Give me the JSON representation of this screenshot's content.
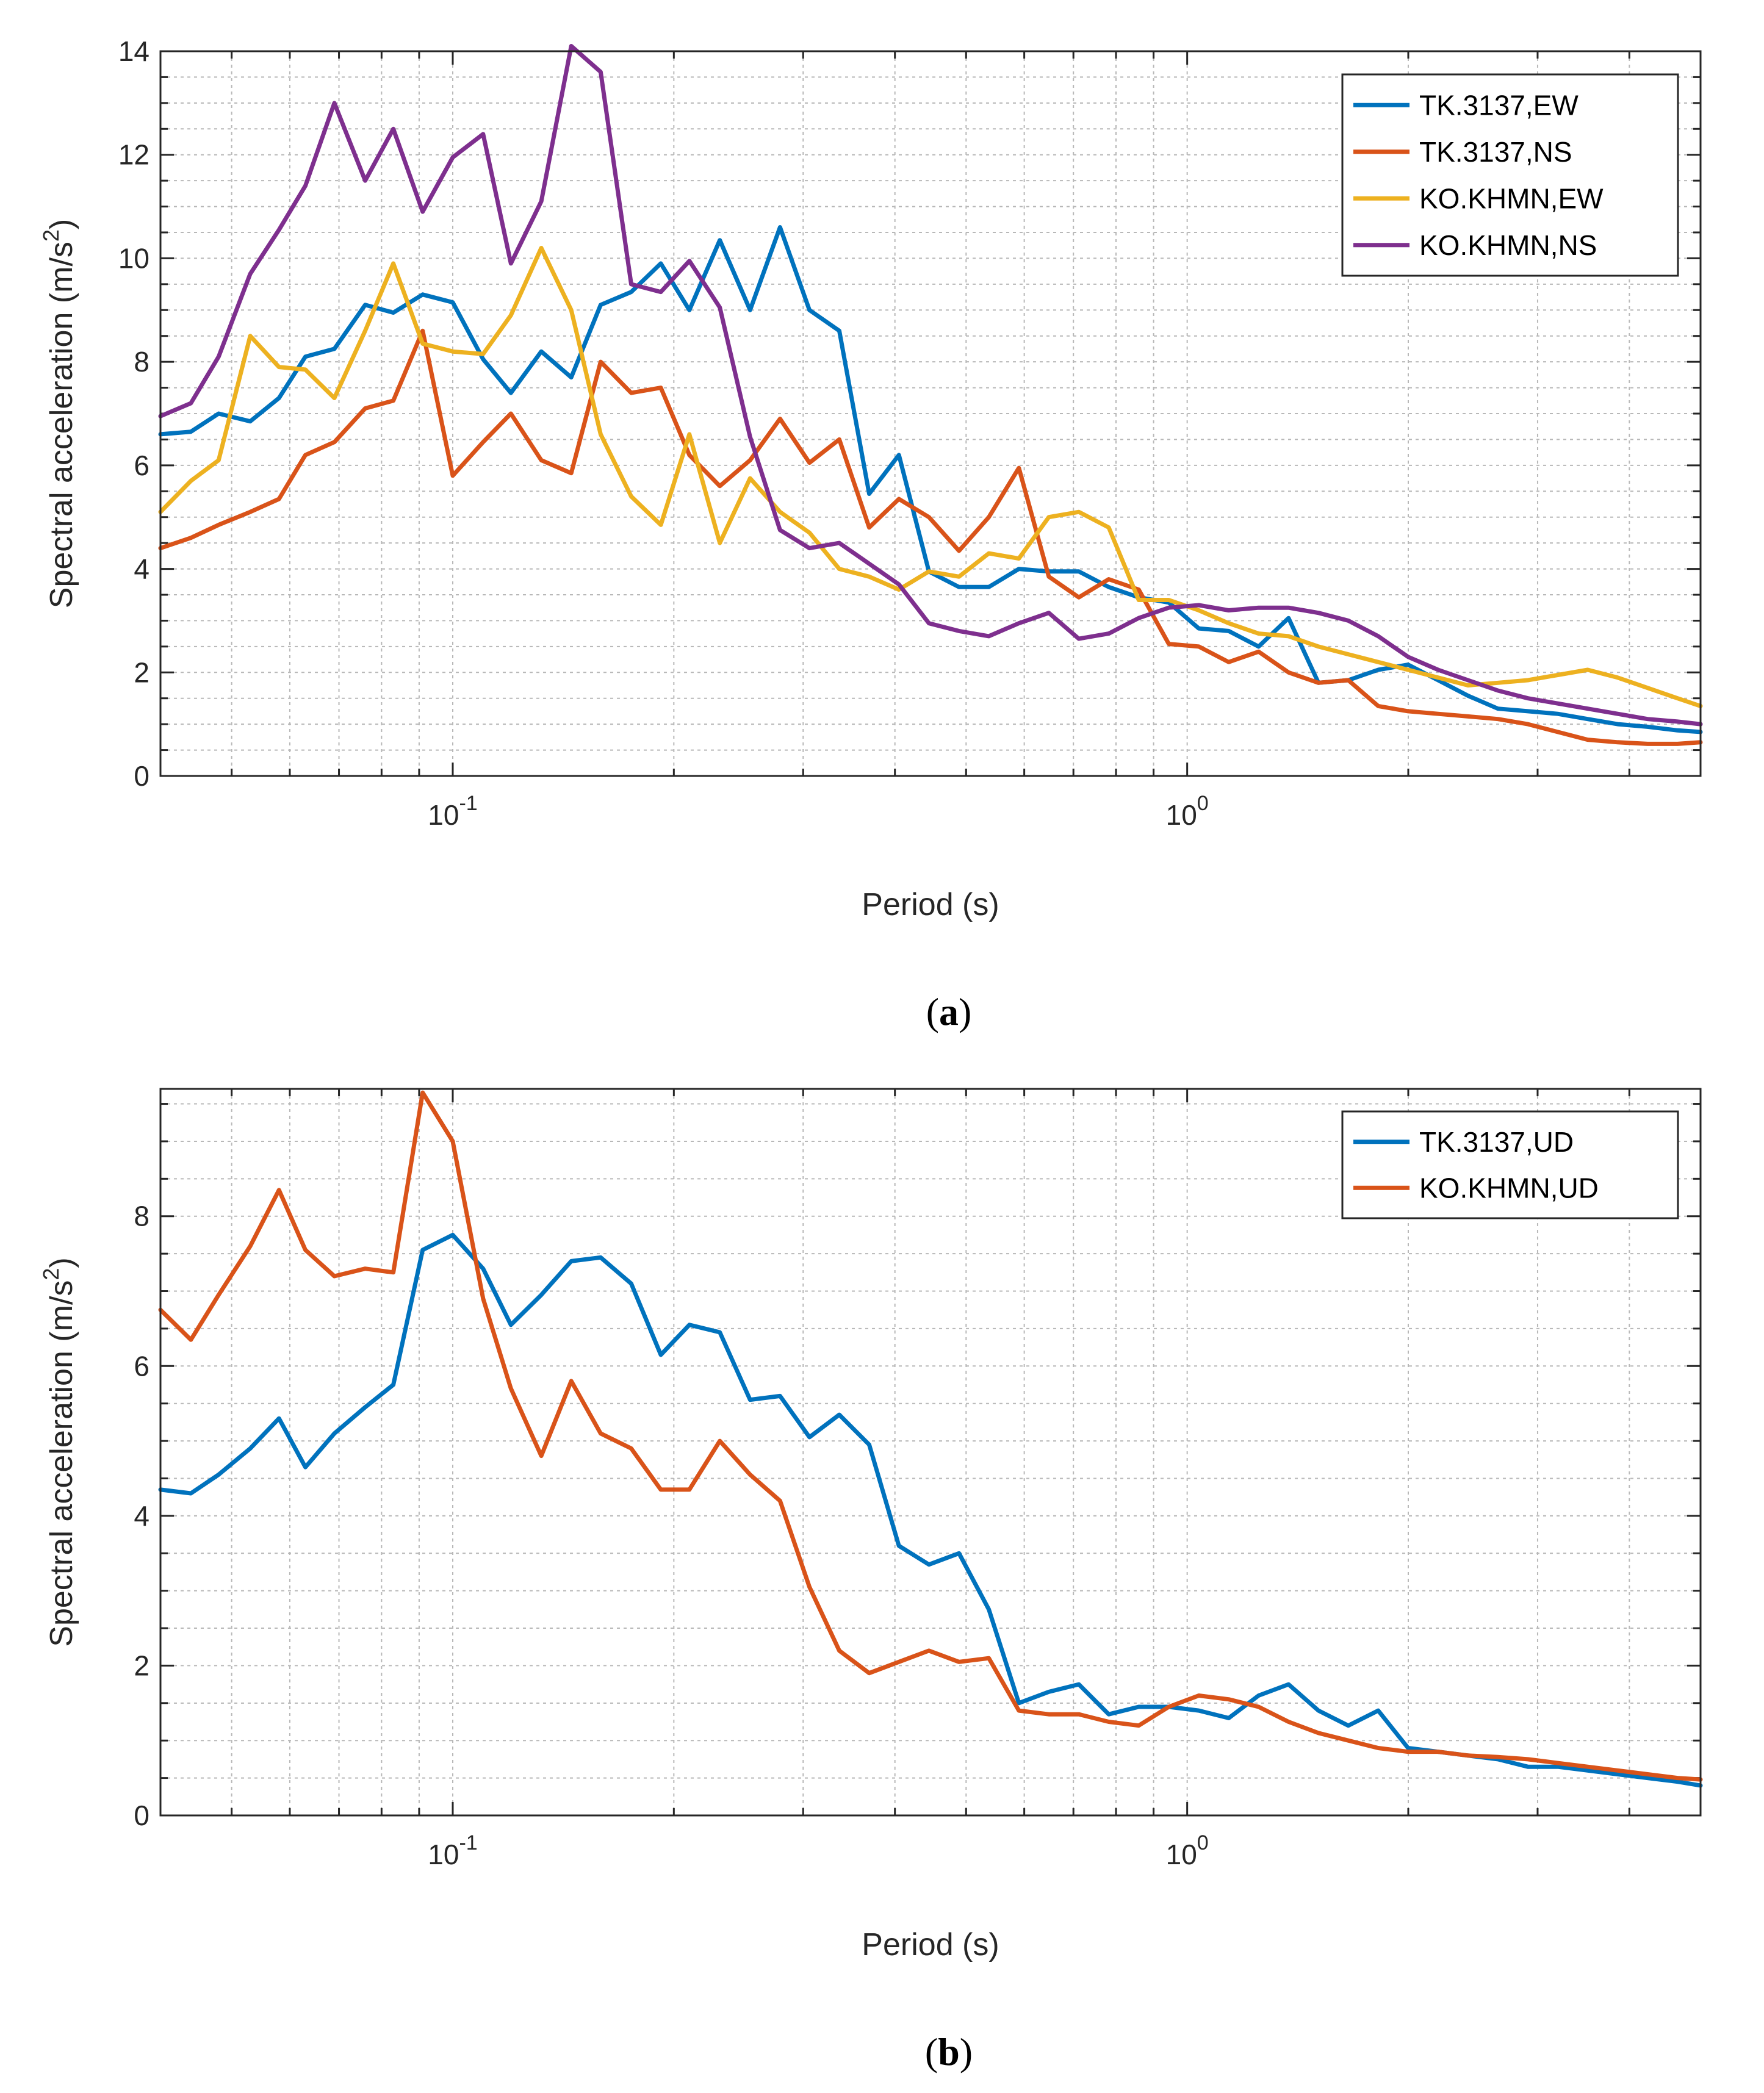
{
  "chart_data": [
    {
      "panel": "a",
      "caption": {
        "open": "(",
        "letter": "a",
        "close": ")"
      },
      "type": "line",
      "xscale": "log",
      "xlim": [
        0.04,
        5
      ],
      "ylim": [
        0,
        14
      ],
      "yticks": [
        0,
        2,
        4,
        6,
        8,
        10,
        12,
        14
      ],
      "ytick_labels": [
        "0",
        "2",
        "4",
        "6",
        "8",
        "10",
        "12",
        "14"
      ],
      "xtick_labels": [
        {
          "base": "10",
          "exp": "-1",
          "value": 0.1
        },
        {
          "base": "10",
          "exp": "0",
          "value": 1
        }
      ],
      "xlabel": "Period (s)",
      "ylabel": {
        "main": "Spectral acceleration (m/s",
        "sup": "2",
        "end": ")"
      },
      "legend_position": "top-right",
      "series": [
        {
          "name": "TK.3137,EW",
          "color": "#0072BD",
          "x": [
            0.04,
            0.044,
            0.048,
            0.053,
            0.058,
            0.063,
            0.069,
            0.076,
            0.083,
            0.091,
            0.1,
            0.11,
            0.12,
            0.132,
            0.145,
            0.159,
            0.175,
            0.192,
            0.21,
            0.231,
            0.254,
            0.279,
            0.306,
            0.336,
            0.369,
            0.405,
            0.445,
            0.489,
            0.537,
            0.59,
            0.648,
            0.712,
            0.782,
            0.859,
            0.944,
            1.037,
            1.139,
            1.251,
            1.374,
            1.509,
            1.657,
            1.82,
            1.999,
            2.196,
            2.412,
            2.649,
            2.91,
            3.196,
            3.51,
            3.856,
            4.235,
            4.652,
            5.0
          ],
          "y": [
            6.6,
            6.65,
            7.0,
            6.85,
            7.3,
            8.1,
            8.25,
            9.1,
            8.95,
            9.3,
            9.15,
            8.05,
            7.4,
            8.2,
            7.7,
            9.1,
            9.35,
            9.9,
            9.0,
            10.35,
            9.0,
            10.6,
            9.0,
            8.6,
            5.45,
            6.2,
            3.95,
            3.65,
            3.65,
            4.0,
            3.95,
            3.95,
            3.65,
            3.45,
            3.35,
            2.85,
            2.8,
            2.5,
            3.05,
            1.8,
            1.85,
            2.05,
            2.15,
            1.85,
            1.55,
            1.3,
            1.25,
            1.2,
            1.1,
            1.0,
            0.95,
            0.88,
            0.85
          ]
        },
        {
          "name": "TK.3137,NS",
          "color": "#D95319",
          "x": [
            0.04,
            0.044,
            0.048,
            0.053,
            0.058,
            0.063,
            0.069,
            0.076,
            0.083,
            0.091,
            0.1,
            0.11,
            0.12,
            0.132,
            0.145,
            0.159,
            0.175,
            0.192,
            0.21,
            0.231,
            0.254,
            0.279,
            0.306,
            0.336,
            0.369,
            0.405,
            0.445,
            0.489,
            0.537,
            0.59,
            0.648,
            0.712,
            0.782,
            0.859,
            0.944,
            1.037,
            1.139,
            1.251,
            1.374,
            1.509,
            1.657,
            1.82,
            1.999,
            2.196,
            2.412,
            2.649,
            2.91,
            3.196,
            3.51,
            3.856,
            4.235,
            4.652,
            5.0
          ],
          "y": [
            4.4,
            4.6,
            4.85,
            5.1,
            5.35,
            6.2,
            6.45,
            7.1,
            7.25,
            8.6,
            5.8,
            6.45,
            7.0,
            6.1,
            5.85,
            8.0,
            7.4,
            7.5,
            6.2,
            5.6,
            6.1,
            6.9,
            6.05,
            6.5,
            4.8,
            5.35,
            5.0,
            4.35,
            5.0,
            5.95,
            3.85,
            3.45,
            3.8,
            3.6,
            2.55,
            2.5,
            2.2,
            2.4,
            2.0,
            1.8,
            1.85,
            1.35,
            1.25,
            1.2,
            1.15,
            1.1,
            1.0,
            0.85,
            0.7,
            0.65,
            0.62,
            0.62,
            0.65
          ]
        },
        {
          "name": "KO.KHMN,EW",
          "color": "#EDB120",
          "x": [
            0.04,
            0.044,
            0.048,
            0.053,
            0.058,
            0.063,
            0.069,
            0.076,
            0.083,
            0.091,
            0.1,
            0.11,
            0.12,
            0.132,
            0.145,
            0.159,
            0.175,
            0.192,
            0.21,
            0.231,
            0.254,
            0.279,
            0.306,
            0.336,
            0.369,
            0.405,
            0.445,
            0.489,
            0.537,
            0.59,
            0.648,
            0.712,
            0.782,
            0.859,
            0.944,
            1.037,
            1.139,
            1.251,
            1.374,
            1.509,
            1.657,
            1.82,
            1.999,
            2.196,
            2.412,
            2.649,
            2.91,
            3.196,
            3.51,
            3.856,
            4.235,
            4.652,
            5.0
          ],
          "y": [
            5.1,
            5.7,
            6.1,
            8.5,
            7.9,
            7.85,
            7.3,
            8.6,
            9.9,
            8.35,
            8.2,
            8.15,
            8.9,
            10.2,
            9.0,
            6.6,
            5.4,
            4.85,
            6.6,
            4.5,
            5.75,
            5.1,
            4.7,
            4.0,
            3.85,
            3.6,
            3.95,
            3.85,
            4.3,
            4.2,
            5.0,
            5.1,
            4.8,
            3.4,
            3.4,
            3.2,
            2.95,
            2.75,
            2.7,
            2.5,
            2.35,
            2.2,
            2.05,
            1.9,
            1.75,
            1.8,
            1.85,
            1.95,
            2.05,
            1.9,
            1.7,
            1.5,
            1.35
          ]
        },
        {
          "name": "KO.KHMN,NS",
          "color": "#7E2F8E",
          "x": [
            0.04,
            0.044,
            0.048,
            0.053,
            0.058,
            0.063,
            0.069,
            0.076,
            0.083,
            0.091,
            0.1,
            0.11,
            0.12,
            0.132,
            0.145,
            0.159,
            0.175,
            0.192,
            0.21,
            0.231,
            0.254,
            0.279,
            0.306,
            0.336,
            0.369,
            0.405,
            0.445,
            0.489,
            0.537,
            0.59,
            0.648,
            0.712,
            0.782,
            0.859,
            0.944,
            1.037,
            1.139,
            1.251,
            1.374,
            1.509,
            1.657,
            1.82,
            1.999,
            2.196,
            2.412,
            2.649,
            2.91,
            3.196,
            3.51,
            3.856,
            4.235,
            4.652,
            5.0
          ],
          "y": [
            6.95,
            7.2,
            8.1,
            9.7,
            10.55,
            11.4,
            13.0,
            11.5,
            12.5,
            10.9,
            11.95,
            12.4,
            9.9,
            11.1,
            14.1,
            13.6,
            9.5,
            9.35,
            9.95,
            9.05,
            6.55,
            4.75,
            4.4,
            4.5,
            4.1,
            3.7,
            2.95,
            2.8,
            2.7,
            2.95,
            3.15,
            2.65,
            2.75,
            3.05,
            3.25,
            3.3,
            3.2,
            3.25,
            3.25,
            3.15,
            3.0,
            2.7,
            2.3,
            2.05,
            1.85,
            1.65,
            1.5,
            1.4,
            1.3,
            1.2,
            1.1,
            1.05,
            1.0
          ]
        }
      ]
    },
    {
      "panel": "b",
      "caption": {
        "open": "(",
        "letter": "b",
        "close": ")"
      },
      "type": "line",
      "xscale": "log",
      "xlim": [
        0.04,
        5
      ],
      "ylim": [
        0,
        9.7
      ],
      "yticks": [
        0,
        2,
        4,
        6,
        8
      ],
      "ytick_labels": [
        "0",
        "2",
        "4",
        "6",
        "8"
      ],
      "xtick_labels": [
        {
          "base": "10",
          "exp": "-1",
          "value": 0.1
        },
        {
          "base": "10",
          "exp": "0",
          "value": 1
        }
      ],
      "xlabel": "Period (s)",
      "ylabel": {
        "main": "Spectral acceleration (m/s",
        "sup": "2",
        "end": ")"
      },
      "legend_position": "top-right",
      "series": [
        {
          "name": "TK.3137,UD",
          "color": "#0072BD",
          "x": [
            0.04,
            0.044,
            0.048,
            0.053,
            0.058,
            0.063,
            0.069,
            0.076,
            0.083,
            0.091,
            0.1,
            0.11,
            0.12,
            0.132,
            0.145,
            0.159,
            0.175,
            0.192,
            0.21,
            0.231,
            0.254,
            0.279,
            0.306,
            0.336,
            0.369,
            0.405,
            0.445,
            0.489,
            0.537,
            0.59,
            0.648,
            0.712,
            0.782,
            0.859,
            0.944,
            1.037,
            1.139,
            1.251,
            1.374,
            1.509,
            1.657,
            1.82,
            1.999,
            2.196,
            2.412,
            2.649,
            2.91,
            3.196,
            3.51,
            3.856,
            4.235,
            4.652,
            5.0
          ],
          "y": [
            4.35,
            4.3,
            4.55,
            4.9,
            5.3,
            4.65,
            5.1,
            5.45,
            5.75,
            7.55,
            7.75,
            7.3,
            6.55,
            6.95,
            7.4,
            7.45,
            7.1,
            6.15,
            6.55,
            6.45,
            5.55,
            5.6,
            5.05,
            5.35,
            4.95,
            3.6,
            3.35,
            3.5,
            2.75,
            1.5,
            1.65,
            1.75,
            1.35,
            1.45,
            1.45,
            1.4,
            1.3,
            1.6,
            1.75,
            1.4,
            1.2,
            1.4,
            0.9,
            0.85,
            0.8,
            0.75,
            0.65,
            0.65,
            0.6,
            0.55,
            0.5,
            0.45,
            0.4
          ]
        },
        {
          "name": "KO.KHMN,UD",
          "color": "#D95319",
          "x": [
            0.04,
            0.044,
            0.048,
            0.053,
            0.058,
            0.063,
            0.069,
            0.076,
            0.083,
            0.091,
            0.1,
            0.11,
            0.12,
            0.132,
            0.145,
            0.159,
            0.175,
            0.192,
            0.21,
            0.231,
            0.254,
            0.279,
            0.306,
            0.336,
            0.369,
            0.405,
            0.445,
            0.489,
            0.537,
            0.59,
            0.648,
            0.712,
            0.782,
            0.859,
            0.944,
            1.037,
            1.139,
            1.251,
            1.374,
            1.509,
            1.657,
            1.82,
            1.999,
            2.196,
            2.412,
            2.649,
            2.91,
            3.196,
            3.51,
            3.856,
            4.235,
            4.652,
            5.0
          ],
          "y": [
            6.75,
            6.35,
            6.95,
            7.6,
            8.35,
            7.55,
            7.2,
            7.3,
            7.25,
            9.65,
            9.0,
            6.9,
            5.7,
            4.8,
            5.8,
            5.1,
            4.9,
            4.35,
            4.35,
            5.0,
            4.55,
            4.2,
            3.05,
            2.2,
            1.9,
            2.05,
            2.2,
            2.05,
            2.1,
            1.4,
            1.35,
            1.35,
            1.25,
            1.2,
            1.45,
            1.6,
            1.55,
            1.45,
            1.25,
            1.1,
            1.0,
            0.9,
            0.85,
            0.85,
            0.8,
            0.78,
            0.75,
            0.7,
            0.65,
            0.6,
            0.55,
            0.5,
            0.48
          ]
        }
      ]
    }
  ]
}
